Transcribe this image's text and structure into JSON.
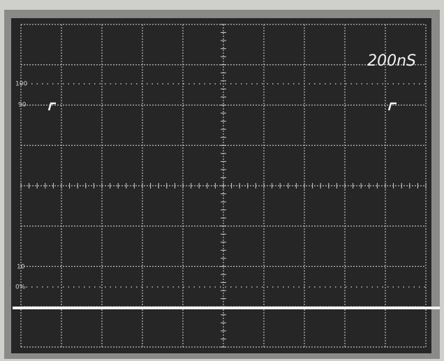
{
  "screen": {
    "timebase": "200nS",
    "graticule_labels": [
      "100",
      "90",
      "10",
      "0%"
    ]
  }
}
